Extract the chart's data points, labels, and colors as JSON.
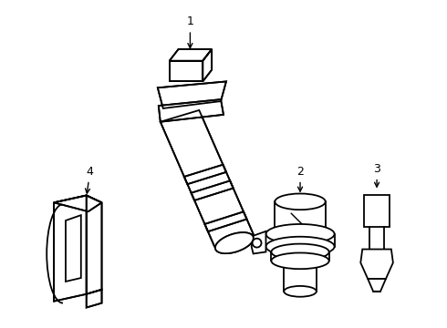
{
  "background_color": "#ffffff",
  "line_color": "#000000",
  "line_width": 1.3,
  "fig_width": 4.9,
  "fig_height": 3.6,
  "dpi": 100
}
